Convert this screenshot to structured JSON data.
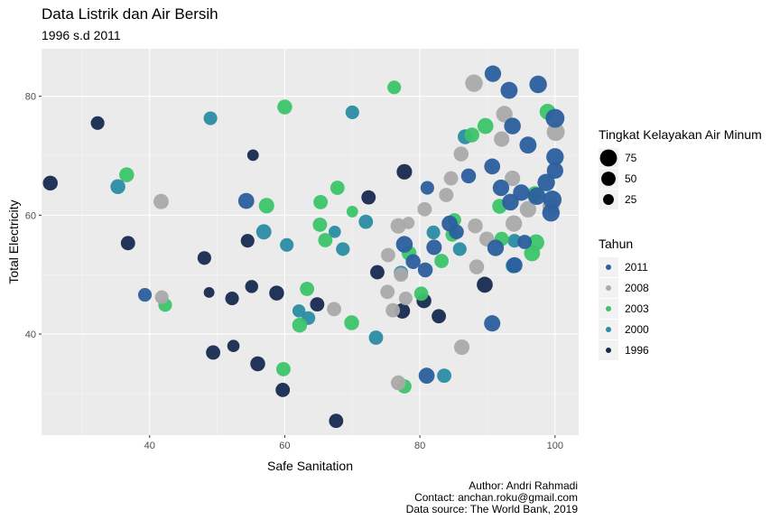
{
  "header": {
    "title": "Data Listrik dan Air Bersih",
    "subtitle": "1996 s.d 2011"
  },
  "caption": {
    "author": "Author: Andri Rahmadi",
    "contact": "Contact: anchan.roku@gmail.com",
    "source": "Data source: The World Bank, 2019"
  },
  "chart_data": {
    "type": "scatter",
    "xlabel": "Safe Sanitation",
    "ylabel": "Total Electricity",
    "xlim": [
      24,
      103.5
    ],
    "ylim": [
      23,
      88
    ],
    "x_ticks": [
      40,
      60,
      80,
      100
    ],
    "y_ticks": [
      40,
      60,
      80
    ],
    "grid": true,
    "legend_position": "right",
    "size_legend": {
      "title": "Tingkat Kelayakan Air Minum",
      "values": [
        75,
        50,
        25
      ]
    },
    "color_legend": {
      "title": "Tahun",
      "entries": [
        {
          "label": "2011",
          "color": "#2c5f9e"
        },
        {
          "label": "2008",
          "color": "#aaaaaa"
        },
        {
          "label": "2003",
          "color": "#3cc46a"
        },
        {
          "label": "2000",
          "color": "#2a8ca3"
        },
        {
          "label": "1996",
          "color": "#172a4f"
        }
      ]
    },
    "series": [
      {
        "name": "2011",
        "points": [
          {
            "x": 90.8,
            "y": 83.8,
            "s": 70
          },
          {
            "x": 97.5,
            "y": 82,
            "s": 80
          },
          {
            "x": 93.2,
            "y": 81,
            "s": 75
          },
          {
            "x": 100,
            "y": 76.3,
            "s": 95
          },
          {
            "x": 93.7,
            "y": 75,
            "s": 72
          },
          {
            "x": 96,
            "y": 71.8,
            "s": 75
          },
          {
            "x": 100,
            "y": 69.8,
            "s": 80
          },
          {
            "x": 90.7,
            "y": 68.2,
            "s": 65
          },
          {
            "x": 87.2,
            "y": 66.6,
            "s": 55
          },
          {
            "x": 100,
            "y": 67.5,
            "s": 70
          },
          {
            "x": 98.7,
            "y": 65.5,
            "s": 80
          },
          {
            "x": 92,
            "y": 64.6,
            "s": 70
          },
          {
            "x": 95,
            "y": 63.8,
            "s": 70
          },
          {
            "x": 97.3,
            "y": 63.2,
            "s": 80
          },
          {
            "x": 99.6,
            "y": 62.6,
            "s": 90
          },
          {
            "x": 93.4,
            "y": 62.2,
            "s": 72
          },
          {
            "x": 99.4,
            "y": 60.4,
            "s": 80
          },
          {
            "x": 54.3,
            "y": 62.4,
            "s": 65
          },
          {
            "x": 84.4,
            "y": 58.6,
            "s": 65
          },
          {
            "x": 85.4,
            "y": 57.2,
            "s": 55
          },
          {
            "x": 77.7,
            "y": 55.1,
            "s": 72
          },
          {
            "x": 95.5,
            "y": 55.5,
            "s": 50
          },
          {
            "x": 82.1,
            "y": 54.6,
            "s": 60
          },
          {
            "x": 91.2,
            "y": 54.5,
            "s": 70
          },
          {
            "x": 79,
            "y": 52.2,
            "s": 55
          },
          {
            "x": 80.8,
            "y": 50.8,
            "s": 55
          },
          {
            "x": 94,
            "y": 51.6,
            "s": 65
          },
          {
            "x": 81.1,
            "y": 64.6,
            "s": 45
          },
          {
            "x": 39.3,
            "y": 46.6,
            "s": 45
          },
          {
            "x": 90.7,
            "y": 41.8,
            "s": 68
          },
          {
            "x": 81,
            "y": 33,
            "s": 65
          }
        ]
      },
      {
        "name": "2008",
        "points": [
          {
            "x": 88,
            "y": 82.2,
            "s": 80
          },
          {
            "x": 92.5,
            "y": 77,
            "s": 70
          },
          {
            "x": 100.1,
            "y": 74,
            "s": 85
          },
          {
            "x": 92.1,
            "y": 72.8,
            "s": 60
          },
          {
            "x": 86.1,
            "y": 70.3,
            "s": 55
          },
          {
            "x": 93.7,
            "y": 66.2,
            "s": 60
          },
          {
            "x": 84.6,
            "y": 66.2,
            "s": 50
          },
          {
            "x": 41.7,
            "y": 62.3,
            "s": 58
          },
          {
            "x": 80.7,
            "y": 61,
            "s": 50
          },
          {
            "x": 83.9,
            "y": 63.4,
            "s": 50
          },
          {
            "x": 99.4,
            "y": 61.5,
            "s": 75
          },
          {
            "x": 96,
            "y": 61,
            "s": 70
          },
          {
            "x": 76.8,
            "y": 58.2,
            "s": 60
          },
          {
            "x": 78.3,
            "y": 58.7,
            "s": 35
          },
          {
            "x": 93.9,
            "y": 58.6,
            "s": 70
          },
          {
            "x": 88.2,
            "y": 58.2,
            "s": 55
          },
          {
            "x": 89.9,
            "y": 56,
            "s": 55
          },
          {
            "x": 75.3,
            "y": 53.3,
            "s": 50
          },
          {
            "x": 88.4,
            "y": 51.3,
            "s": 55
          },
          {
            "x": 77.2,
            "y": 50,
            "s": 50
          },
          {
            "x": 75.2,
            "y": 47.1,
            "s": 50
          },
          {
            "x": 77.9,
            "y": 46,
            "s": 45
          },
          {
            "x": 41.8,
            "y": 46.2,
            "s": 45
          },
          {
            "x": 67.3,
            "y": 44.2,
            "s": 50
          },
          {
            "x": 76,
            "y": 44,
            "s": 50
          },
          {
            "x": 86.2,
            "y": 37.8,
            "s": 60
          },
          {
            "x": 76.8,
            "y": 31.8,
            "s": 55
          }
        ]
      },
      {
        "name": "2003",
        "points": [
          {
            "x": 60,
            "y": 78.2,
            "s": 55
          },
          {
            "x": 76.2,
            "y": 81.5,
            "s": 45
          },
          {
            "x": 98.9,
            "y": 77.4,
            "s": 65
          },
          {
            "x": 89.7,
            "y": 75,
            "s": 65
          },
          {
            "x": 87.7,
            "y": 73.5,
            "s": 55
          },
          {
            "x": 36.6,
            "y": 66.8,
            "s": 55
          },
          {
            "x": 67.8,
            "y": 64.6,
            "s": 50
          },
          {
            "x": 97,
            "y": 63.5,
            "s": 68
          },
          {
            "x": 65.3,
            "y": 62.2,
            "s": 50
          },
          {
            "x": 57.3,
            "y": 61.6,
            "s": 60
          },
          {
            "x": 70,
            "y": 60.6,
            "s": 30
          },
          {
            "x": 91.8,
            "y": 61.5,
            "s": 55
          },
          {
            "x": 65.2,
            "y": 58.4,
            "s": 50
          },
          {
            "x": 85.1,
            "y": 59.2,
            "s": 45
          },
          {
            "x": 66,
            "y": 55.8,
            "s": 50
          },
          {
            "x": 84.8,
            "y": 56.7,
            "s": 45
          },
          {
            "x": 97.2,
            "y": 55.4,
            "s": 68
          },
          {
            "x": 96.6,
            "y": 53.6,
            "s": 65
          },
          {
            "x": 92.1,
            "y": 56,
            "s": 50
          },
          {
            "x": 78.4,
            "y": 53.6,
            "s": 55
          },
          {
            "x": 83.2,
            "y": 52.3,
            "s": 50
          },
          {
            "x": 63.3,
            "y": 47.6,
            "s": 50
          },
          {
            "x": 80.2,
            "y": 46.8,
            "s": 50
          },
          {
            "x": 42.3,
            "y": 44.9,
            "s": 45
          },
          {
            "x": 69.9,
            "y": 41.9,
            "s": 55
          },
          {
            "x": 62.2,
            "y": 41.5,
            "s": 55
          },
          {
            "x": 59.8,
            "y": 34.1,
            "s": 50
          },
          {
            "x": 77.7,
            "y": 31.2,
            "s": 50
          }
        ]
      },
      {
        "name": "2000",
        "points": [
          {
            "x": 49,
            "y": 76.3,
            "s": 45
          },
          {
            "x": 70,
            "y": 77.3,
            "s": 45
          },
          {
            "x": 86.7,
            "y": 73.2,
            "s": 55
          },
          {
            "x": 35.3,
            "y": 64.8,
            "s": 55
          },
          {
            "x": 56.9,
            "y": 57.2,
            "s": 58
          },
          {
            "x": 60.3,
            "y": 55,
            "s": 45
          },
          {
            "x": 67.4,
            "y": 57.2,
            "s": 35
          },
          {
            "x": 68.6,
            "y": 54.3,
            "s": 45
          },
          {
            "x": 72,
            "y": 58.9,
            "s": 50
          },
          {
            "x": 85.9,
            "y": 54.3,
            "s": 45
          },
          {
            "x": 82,
            "y": 57.1,
            "s": 45
          },
          {
            "x": 94,
            "y": 55.7,
            "s": 45
          },
          {
            "x": 77.2,
            "y": 50.3,
            "s": 50
          },
          {
            "x": 62.1,
            "y": 43.9,
            "s": 40
          },
          {
            "x": 63.5,
            "y": 42.7,
            "s": 45
          },
          {
            "x": 73.5,
            "y": 39.4,
            "s": 50
          },
          {
            "x": 93.8,
            "y": 51.5,
            "s": 55
          },
          {
            "x": 83.6,
            "y": 33,
            "s": 50
          }
        ]
      },
      {
        "name": "1996",
        "points": [
          {
            "x": 32.3,
            "y": 75.5,
            "s": 45
          },
          {
            "x": 55.3,
            "y": 70.1,
            "s": 30
          },
          {
            "x": 25.3,
            "y": 65.4,
            "s": 55
          },
          {
            "x": 72.4,
            "y": 63,
            "s": 50
          },
          {
            "x": 77.7,
            "y": 67.3,
            "s": 60
          },
          {
            "x": 36.8,
            "y": 55.3,
            "s": 50
          },
          {
            "x": 54.5,
            "y": 55.7,
            "s": 45
          },
          {
            "x": 48.1,
            "y": 52.8,
            "s": 45
          },
          {
            "x": 73.7,
            "y": 50.4,
            "s": 50
          },
          {
            "x": 55.1,
            "y": 48,
            "s": 40
          },
          {
            "x": 58.8,
            "y": 46.9,
            "s": 55
          },
          {
            "x": 52.2,
            "y": 46,
            "s": 45
          },
          {
            "x": 48.8,
            "y": 47,
            "s": 25
          },
          {
            "x": 64.8,
            "y": 45,
            "s": 50
          },
          {
            "x": 80.6,
            "y": 45.6,
            "s": 55
          },
          {
            "x": 77.4,
            "y": 43.9,
            "s": 60
          },
          {
            "x": 82.8,
            "y": 43,
            "s": 50
          },
          {
            "x": 89.6,
            "y": 48.3,
            "s": 65
          },
          {
            "x": 49.4,
            "y": 36.9,
            "s": 50
          },
          {
            "x": 52.4,
            "y": 38,
            "s": 35
          },
          {
            "x": 56,
            "y": 35,
            "s": 55
          },
          {
            "x": 59.7,
            "y": 30.6,
            "s": 50
          },
          {
            "x": 67.6,
            "y": 25.4,
            "s": 50
          }
        ]
      }
    ]
  }
}
